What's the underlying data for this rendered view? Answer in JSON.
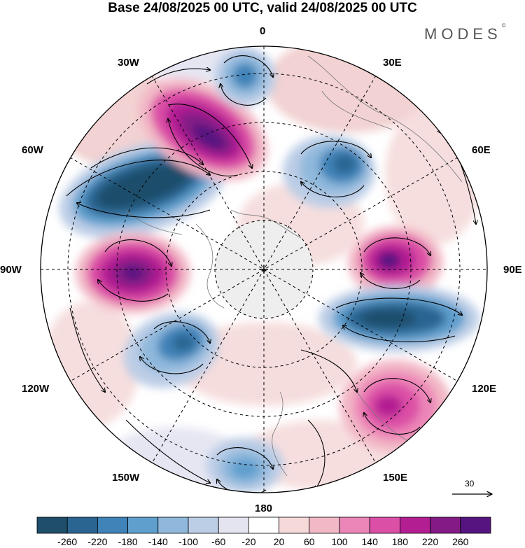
{
  "title": "Base 24/08/2025 00 UTC, valid 24/08/2025 00 UTC",
  "brand": {
    "name": "MODES",
    "mark": "©"
  },
  "longitude_labels": {
    "top": "0",
    "top_right": "30E",
    "upper_right": "60E",
    "right": "90E",
    "lower_right": "120E",
    "bottom_right": "150E",
    "bottom": "180",
    "bottom_left": "150W",
    "lower_left": "120W",
    "left": "90W",
    "upper_left": "60W",
    "top_left": "30W"
  },
  "wind_reference": {
    "value": "30"
  },
  "colorbar": {
    "labels": [
      "-260",
      "-220",
      "-180",
      "-140",
      "-100",
      "-60",
      "-20",
      "20",
      "60",
      "100",
      "140",
      "180",
      "220",
      "260"
    ],
    "colors": [
      "#1f4e6b",
      "#2a6592",
      "#3f83b8",
      "#5f9fcd",
      "#8fb8dc",
      "#bccde6",
      "#e4e4f0",
      "#ffffff",
      "#f6d9d9",
      "#f2b8c6",
      "#ec86b8",
      "#dc4fa6",
      "#b41e93",
      "#841a86",
      "#561480"
    ]
  },
  "anomaly_centers": [
    {
      "name": "low-pacific-atlantic-west",
      "value": -260
    },
    {
      "name": "high-north-atlantic",
      "value": 260
    },
    {
      "name": "high-west-90w",
      "value": 260
    },
    {
      "name": "low-south-pacific",
      "value": -180
    },
    {
      "name": "low-near-zero",
      "value": -180
    },
    {
      "name": "low-northeast",
      "value": -180
    },
    {
      "name": "high-east-90e",
      "value": 260
    },
    {
      "name": "low-east-110e",
      "value": -260
    },
    {
      "name": "high-southeast-130e",
      "value": 220
    },
    {
      "name": "low-south-180",
      "value": -140
    }
  ]
}
